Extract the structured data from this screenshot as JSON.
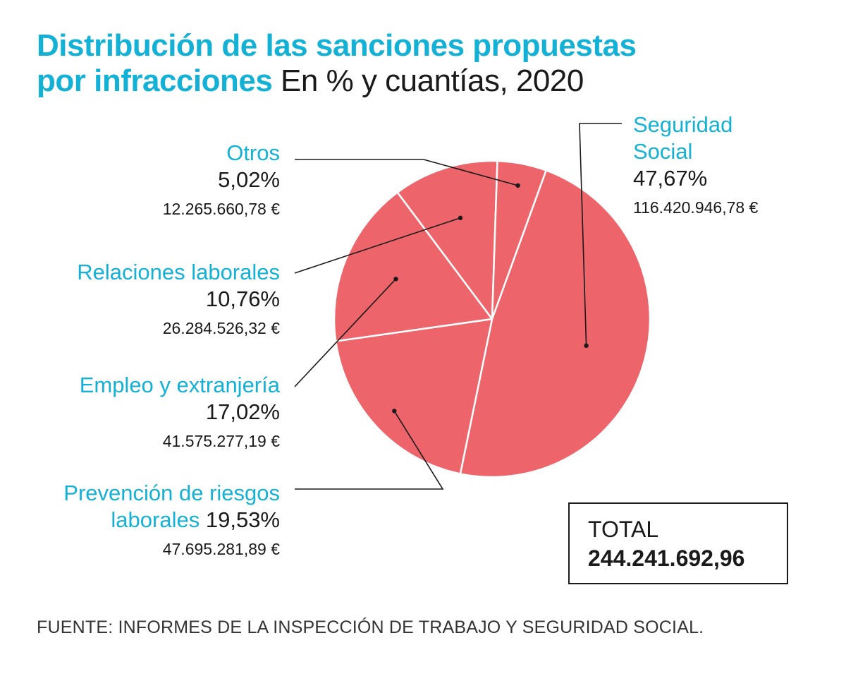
{
  "title": {
    "line1": "Distribución de las sanciones propuestas",
    "line2": "por infracciones",
    "subtitle": "En % y cuantías, 2020"
  },
  "source": "FUENTE: INFORMES DE LA INSPECCIÓN DE TRABAJO Y SEGURIDAD SOCIAL.",
  "total": {
    "label": "TOTAL",
    "value": "244.241.692,96"
  },
  "colors": {
    "accent": "#14b1d6",
    "slice": "#ed656b",
    "slice_border": "#ffffff",
    "leader": "#1a1a1a"
  },
  "chart_data": {
    "type": "pie",
    "start_angle_deg": 20,
    "direction": "clockwise",
    "slices": [
      {
        "label": "Seguridad Social",
        "label_lines": [
          "Seguridad",
          "Social"
        ],
        "value": 47.67,
        "pct_text": "47,67%",
        "amount": "116.420.946,78 €"
      },
      {
        "label": "Prevención de riesgos laborales",
        "label_lines": [
          "Prevención de riesgos",
          "laborales"
        ],
        "value": 19.53,
        "pct_text": "19,53%",
        "amount": "47.695.281,89 €"
      },
      {
        "label": "Empleo y extranjería",
        "label_lines": [
          "Empleo y extranjería"
        ],
        "value": 17.02,
        "pct_text": "17,02%",
        "amount": "41.575.277,19 €"
      },
      {
        "label": "Relaciones laborales",
        "label_lines": [
          "Relaciones laborales"
        ],
        "value": 10.76,
        "pct_text": "10,76%",
        "amount": "26.284.526,32 €"
      },
      {
        "label": "Otros",
        "label_lines": [
          "Otros"
        ],
        "value": 5.02,
        "pct_text": "5,02%",
        "amount": "12.265.660,78 €"
      }
    ]
  }
}
